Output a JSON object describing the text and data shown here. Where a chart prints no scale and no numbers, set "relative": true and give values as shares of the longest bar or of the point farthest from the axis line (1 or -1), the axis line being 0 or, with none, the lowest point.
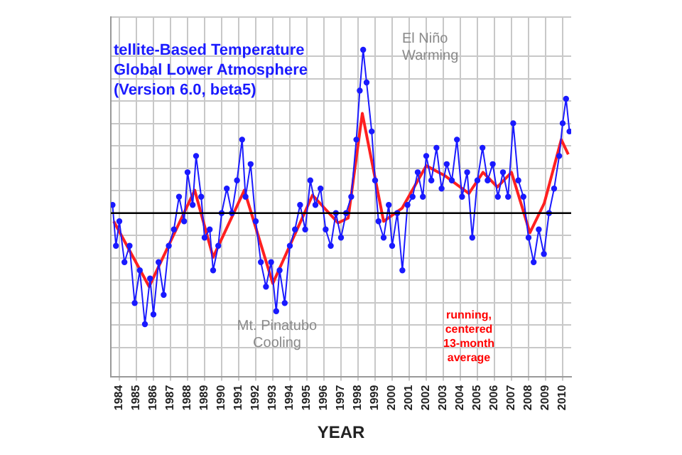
{
  "chart_data": {
    "type": "line",
    "title": "tellite-Based Temperature\nGlobal Lower Atmosphere\n(Version 6.0, beta5)",
    "xlabel": "YEAR",
    "relative": true,
    "xlim": [
      1983.5,
      2010.5
    ],
    "xticks": [
      1984,
      1985,
      1986,
      1987,
      1988,
      1989,
      1990,
      1991,
      1992,
      1993,
      1994,
      1995,
      1996,
      1997,
      1998,
      1999,
      2000,
      2001,
      2002,
      2003,
      2004,
      2005,
      2006,
      2007,
      2008,
      2009,
      2010
    ],
    "grid": true,
    "legend": false,
    "tick_labels": "x",
    "annotations": [
      "El Niño\nWarming",
      "Mt. Pinatubo\nCooling",
      "running,\ncentered\n13-month\naverage"
    ],
    "series": [
      {
        "color": "#1a1aff",
        "marker": "circle",
        "line_style": "solid",
        "x": [
          1983.6,
          1983.8,
          1984.0,
          1984.3,
          1984.6,
          1984.9,
          1985.2,
          1985.5,
          1985.8,
          1986.0,
          1986.3,
          1986.6,
          1986.9,
          1987.2,
          1987.5,
          1987.8,
          1988.0,
          1988.3,
          1988.5,
          1988.8,
          1989.0,
          1989.3,
          1989.5,
          1989.8,
          1990.0,
          1990.3,
          1990.6,
          1990.9,
          1991.2,
          1991.4,
          1991.7,
          1992.0,
          1992.3,
          1992.6,
          1992.9,
          1993.2,
          1993.4,
          1993.7,
          1994.0,
          1994.3,
          1994.6,
          1994.9,
          1995.2,
          1995.5,
          1995.8,
          1996.1,
          1996.4,
          1996.7,
          1997.0,
          1997.3,
          1997.6,
          1997.9,
          1998.1,
          1998.3,
          1998.5,
          1998.8,
          1999.0,
          1999.2,
          1999.5,
          1999.8,
          2000.0,
          2000.3,
          2000.6,
          2000.9,
          2001.2,
          2001.5,
          2001.8,
          2002.0,
          2002.3,
          2002.6,
          2002.9,
          2003.2,
          2003.5,
          2003.8,
          2004.1,
          2004.4,
          2004.7,
          2005.0,
          2005.3,
          2005.6,
          2005.9,
          2006.2,
          2006.5,
          2006.8,
          2007.1,
          2007.4,
          2007.7,
          2008.0,
          2008.3,
          2008.6,
          2008.9,
          2009.2,
          2009.5,
          2009.8,
          2010.0,
          2010.2,
          2010.4
        ],
        "values": [
          0.05,
          -0.2,
          -0.05,
          -0.3,
          -0.2,
          -0.55,
          -0.35,
          -0.68,
          -0.4,
          -0.62,
          -0.3,
          -0.5,
          -0.2,
          -0.1,
          0.1,
          -0.05,
          0.25,
          0.05,
          0.35,
          0.1,
          -0.15,
          -0.1,
          -0.35,
          -0.2,
          0.0,
          0.15,
          0.0,
          0.2,
          0.45,
          0.1,
          0.3,
          -0.05,
          -0.3,
          -0.45,
          -0.3,
          -0.6,
          -0.35,
          -0.55,
          -0.2,
          -0.1,
          0.05,
          -0.1,
          0.2,
          0.05,
          0.15,
          -0.1,
          -0.2,
          0.0,
          -0.15,
          0.0,
          0.1,
          0.45,
          0.75,
          1.0,
          0.8,
          0.5,
          0.2,
          -0.05,
          -0.15,
          0.05,
          -0.2,
          0.0,
          -0.35,
          0.05,
          0.1,
          0.25,
          0.1,
          0.35,
          0.2,
          0.4,
          0.15,
          0.3,
          0.2,
          0.45,
          0.1,
          0.25,
          -0.15,
          0.2,
          0.4,
          0.2,
          0.3,
          0.1,
          0.25,
          0.1,
          0.55,
          0.2,
          0.1,
          -0.15,
          -0.3,
          -0.1,
          -0.25,
          0.0,
          0.15,
          0.35,
          0.55,
          0.7,
          0.5
        ]
      },
      {
        "color": "#ff2020",
        "marker": "none",
        "line_style": "solid",
        "x": [
          1983.67,
          1985.75,
          1988.42,
          1989.5,
          1991.33,
          1993.0,
          1995.33,
          1996.83,
          1997.42,
          1998.25,
          1999.5,
          2000.58,
          2002.0,
          2003.08,
          2004.5,
          2005.33,
          2006.17,
          2007.0,
          2008.08,
          2008.92,
          2009.92,
          2010.33
        ],
        "values": [
          -0.05,
          -0.45,
          0.14,
          -0.27,
          0.14,
          -0.43,
          0.11,
          -0.06,
          -0.03,
          0.61,
          -0.05,
          0.03,
          0.29,
          0.23,
          0.12,
          0.25,
          0.16,
          0.25,
          -0.12,
          0.06,
          0.45,
          0.36
        ]
      }
    ]
  }
}
